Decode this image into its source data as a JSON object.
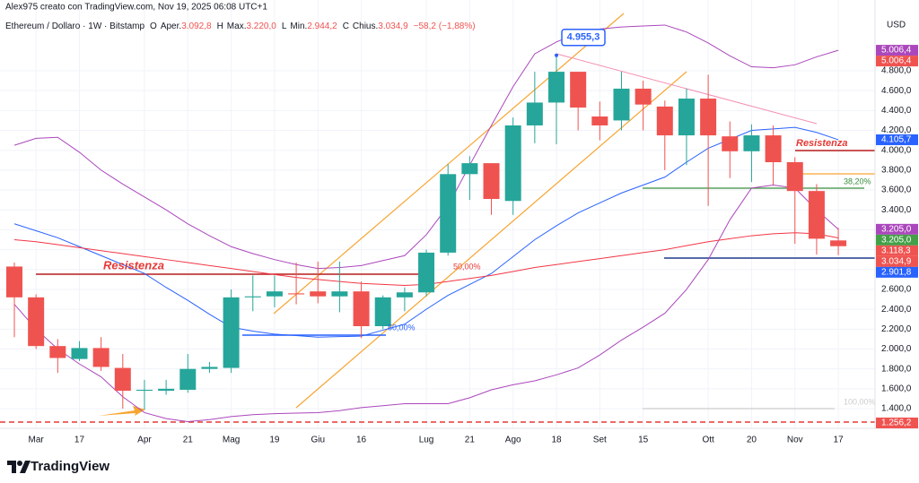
{
  "chart_data": {
    "type": "candlestick",
    "author": "Alex975 creato con TradingView.com, Nov 19, 2025 06:08 UTC+1",
    "title": "Ethereum / Dollaro · 1W · Bitstamp",
    "ohlc": [
      {
        "key": "O",
        "name": "Aper.",
        "value": "3.092,8"
      },
      {
        "key": "H",
        "name": "Max.",
        "value": "3.220,0"
      },
      {
        "key": "L",
        "name": "Min.",
        "value": "2.944,2"
      },
      {
        "key": "C",
        "name": "Chius.",
        "value": "3.034,9"
      }
    ],
    "change": "−58,2 (−1,88%)",
    "currency": "USD",
    "brand": "TradingView",
    "categories": [
      null,
      "Mar",
      null,
      "17",
      null,
      null,
      "Apr",
      null,
      "21",
      null,
      "Mag",
      null,
      "19",
      null,
      "Giu",
      null,
      "16",
      null,
      null,
      "Lug",
      null,
      "21",
      null,
      "Ago",
      null,
      "18",
      null,
      "Set",
      null,
      "15",
      null,
      null,
      "Ott",
      null,
      "20",
      null,
      "Nov",
      null,
      "17"
    ],
    "open": [
      2830,
      2520,
      2030,
      1900,
      2010,
      1810,
      1580,
      1580,
      1590,
      1800,
      1810,
      2520,
      2530,
      2560,
      2580,
      2530,
      2580,
      2230,
      2520,
      2570,
      2970,
      3760,
      3870,
      3490,
      4250,
      4480,
      4790,
      4340,
      4300,
      4620,
      4440,
      4150,
      4520,
      4140,
      3990,
      4150,
      3880,
      3590,
      3092.8
    ],
    "high": [
      2870,
      2550,
      2100,
      2080,
      2120,
      1950,
      1690,
      1690,
      1950,
      1870,
      2600,
      2740,
      2740,
      2870,
      2880,
      2880,
      2680,
      2540,
      2620,
      3000,
      3860,
      3940,
      3870,
      4330,
      4790,
      4955.3,
      4790,
      4490,
      4790,
      4700,
      4500,
      4620,
      4760,
      4290,
      4260,
      4250,
      3930,
      3660,
      3220
    ],
    "low": [
      2120,
      2000,
      1760,
      1880,
      1780,
      1400,
      1390,
      1540,
      1560,
      1760,
      1760,
      2380,
      2420,
      2450,
      2460,
      2370,
      2110,
      2200,
      2380,
      2530,
      2940,
      3500,
      3350,
      3350,
      4070,
      4060,
      4200,
      4100,
      4200,
      4200,
      3800,
      3850,
      3440,
      3720,
      3680,
      3650,
      3060,
      2950,
      2944.2
    ],
    "close": [
      2520,
      2030,
      1910,
      2010,
      1820,
      1580,
      1590,
      1600,
      1800,
      1820,
      2520,
      2530,
      2580,
      2550,
      2530,
      2580,
      2230,
      2520,
      2570,
      2970,
      3760,
      3870,
      3510,
      4250,
      4480,
      4790,
      4430,
      4250,
      4620,
      4460,
      4150,
      4520,
      4150,
      3990,
      4150,
      3880,
      3590,
      3110,
      3034.9
    ],
    "up_color": "#26a69a",
    "down_color": "#ef5350",
    "series": [
      {
        "color": "#ab47bc",
        "values": [
          4050,
          4120,
          4130,
          3980,
          3800,
          3660,
          3530,
          3400,
          3260,
          3140,
          3030,
          2960,
          2900,
          2850,
          2810,
          2820,
          2840,
          2890,
          2940,
          3150,
          3440,
          3850,
          4250,
          4640,
          4970,
          5090,
          5180,
          5220,
          5240,
          5250,
          5260,
          5190,
          5080,
          4950,
          4840,
          4830,
          4860,
          4940,
          5006
        ]
      },
      {
        "color": "#ab47bc",
        "values": [
          2450,
          2200,
          2000,
          1850,
          1720,
          1520,
          1360,
          1300,
          1270,
          1290,
          1320,
          1340,
          1350,
          1355,
          1360,
          1380,
          1410,
          1430,
          1450,
          1450,
          1450,
          1510,
          1590,
          1640,
          1680,
          1740,
          1810,
          1940,
          2090,
          2220,
          2360,
          2600,
          2900,
          3300,
          3620,
          3650,
          3620,
          3400,
          3205
        ]
      },
      {
        "color": "#2962ff",
        "values": [
          3260,
          3190,
          3120,
          3030,
          2940,
          2850,
          2760,
          2620,
          2490,
          2350,
          2220,
          2180,
          2150,
          2135,
          2120,
          2125,
          2130,
          2190,
          2250,
          2400,
          2540,
          2650,
          2760,
          2930,
          3100,
          3240,
          3370,
          3470,
          3570,
          3650,
          3730,
          3880,
          4020,
          4110,
          4200,
          4215,
          4230,
          4180,
          4106
        ]
      },
      {
        "color": "#f23645",
        "values": [
          3100,
          3080,
          3050,
          3020,
          2990,
          2960,
          2930,
          2900,
          2870,
          2840,
          2810,
          2780,
          2750,
          2720,
          2700,
          2680,
          2660,
          2650,
          2640,
          2650,
          2680,
          2710,
          2740,
          2780,
          2820,
          2850,
          2880,
          2910,
          2940,
          2970,
          3000,
          3040,
          3080,
          3110,
          3140,
          3160,
          3170,
          3160,
          3118
        ]
      }
    ],
    "ylim": [
      1202,
      5512
    ],
    "yticks": [
      {
        "value": 1400,
        "label": "1.400,0"
      },
      {
        "value": 1600,
        "label": "1.600,0"
      },
      {
        "value": 1800,
        "label": "1.800,0"
      },
      {
        "value": 2000,
        "label": "2.000,0"
      },
      {
        "value": 2200,
        "label": "2.200,0"
      },
      {
        "value": 2400,
        "label": "2.400,0"
      },
      {
        "value": 2600,
        "label": "2.600,0"
      },
      {
        "value": 2800,
        "label": "2.800,0"
      },
      {
        "value": 3000,
        "label": "3.000,0"
      },
      {
        "value": 3200,
        "label": "3.200,0"
      },
      {
        "value": 3400,
        "label": "3.400,0"
      },
      {
        "value": 3600,
        "label": "3.600,0"
      },
      {
        "value": 3800,
        "label": "3.800,0"
      },
      {
        "value": 4000,
        "label": "4.000,0"
      },
      {
        "value": 4200,
        "label": "4.200,0"
      },
      {
        "value": 4400,
        "label": "4.400,0"
      },
      {
        "value": 4600,
        "label": "4.600,0"
      },
      {
        "value": 4800,
        "label": "4.800,0"
      }
    ],
    "grid": true,
    "price_labels": [
      {
        "value": 5006.4,
        "label": "5.006,4",
        "color": "#ab47bc"
      },
      {
        "value": 5006.4,
        "label": "5.006,4",
        "color": "#ef5350"
      },
      {
        "value": 4105.7,
        "label": "4.105,7",
        "color": "#2962ff"
      },
      {
        "value": 3205,
        "label": "3.205,0",
        "color": "#ab47bc"
      },
      {
        "value": 3205,
        "label": "3.205,0",
        "color": "#43a047"
      },
      {
        "value": 3118.3,
        "label": "3.118,3",
        "color": "#ef5350"
      },
      {
        "value": 3034.9,
        "label": "3.034,9",
        "color": "#ef5350"
      },
      {
        "value": 2901.8,
        "label": "2.901,8",
        "color": "#2962ff"
      },
      {
        "value": 1256.2,
        "label": "1.256,2",
        "color": "#ef5350"
      }
    ],
    "peak_label": "4.955,3",
    "annotations": [
      "Resistenza",
      "Resistenza",
      "50,00%",
      "50,00%",
      "38,20%",
      "100,00%"
    ]
  }
}
